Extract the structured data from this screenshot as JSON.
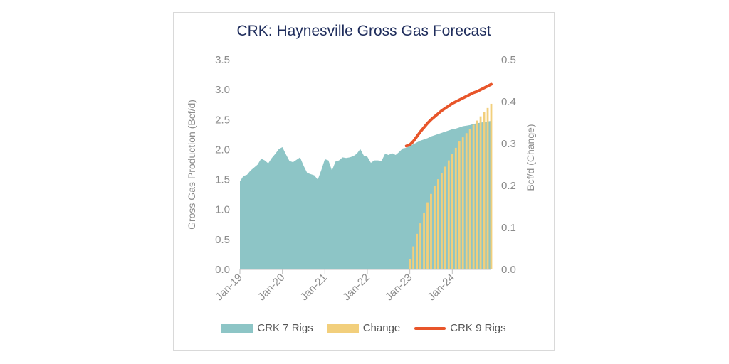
{
  "chart_data": {
    "type": "area",
    "title": "CRK: Haynesville Gross Gas Forecast",
    "ylabel": "Gross Gas Production (Bcf/d)",
    "y2label": "Bcf/d (Change)",
    "ylim": [
      0,
      3.5
    ],
    "y2lim": [
      0,
      0.5
    ],
    "yticks": [
      "0.0",
      "0.5",
      "1.0",
      "1.5",
      "2.0",
      "2.5",
      "3.0",
      "3.5"
    ],
    "y2ticks": [
      "0.0",
      "0.1",
      "0.2",
      "0.3",
      "0.4",
      "0.5"
    ],
    "xticks": [
      "Jan-19",
      "Jan-20",
      "Jan-21",
      "Jan-22",
      "Jan-23",
      "Jan-24"
    ],
    "x_start": "Jan-19",
    "legend_position": "bottom",
    "grid": false,
    "colors": {
      "area": "#8dc5c6",
      "bar": "#f2cf7c",
      "line": "#e8552a",
      "title": "#1f2d5c"
    },
    "series": [
      {
        "name": "CRK 7 Rigs",
        "type": "area",
        "axis": "left",
        "values": [
          1.47,
          1.56,
          1.58,
          1.65,
          1.7,
          1.75,
          1.85,
          1.82,
          1.77,
          1.86,
          1.93,
          2.01,
          2.04,
          1.92,
          1.81,
          1.79,
          1.83,
          1.87,
          1.73,
          1.61,
          1.59,
          1.57,
          1.5,
          1.66,
          1.84,
          1.82,
          1.65,
          1.8,
          1.82,
          1.87,
          1.86,
          1.87,
          1.89,
          1.93,
          2.01,
          1.9,
          1.88,
          1.78,
          1.82,
          1.82,
          1.81,
          1.93,
          1.91,
          1.94,
          1.91,
          1.96,
          2.02,
          2.03,
          2.06,
          2.09,
          2.12,
          2.15,
          2.17,
          2.19,
          2.22,
          2.24,
          2.26,
          2.28,
          2.3,
          2.32,
          2.34,
          2.35,
          2.37,
          2.39,
          2.4,
          2.41,
          2.43,
          2.44,
          2.45,
          2.46,
          2.47,
          2.48
        ]
      },
      {
        "name": "Change",
        "type": "bar",
        "axis": "right",
        "values": [
          0,
          0,
          0,
          0,
          0,
          0,
          0,
          0,
          0,
          0,
          0,
          0,
          0,
          0,
          0,
          0,
          0,
          0,
          0,
          0,
          0,
          0,
          0,
          0,
          0,
          0,
          0,
          0,
          0,
          0,
          0,
          0,
          0,
          0,
          0,
          0,
          0,
          0,
          0,
          0,
          0,
          0,
          0,
          0,
          0,
          0,
          0,
          0,
          0.025,
          0.055,
          0.085,
          0.11,
          0.135,
          0.16,
          0.18,
          0.2,
          0.215,
          0.23,
          0.245,
          0.26,
          0.275,
          0.29,
          0.305,
          0.315,
          0.325,
          0.335,
          0.345,
          0.355,
          0.365,
          0.375,
          0.385,
          0.395
        ]
      },
      {
        "name": "CRK 9 Rigs",
        "type": "line",
        "axis": "left",
        "values": [
          null,
          null,
          null,
          null,
          null,
          null,
          null,
          null,
          null,
          null,
          null,
          null,
          null,
          null,
          null,
          null,
          null,
          null,
          null,
          null,
          null,
          null,
          null,
          null,
          null,
          null,
          null,
          null,
          null,
          null,
          null,
          null,
          null,
          null,
          null,
          null,
          null,
          null,
          null,
          null,
          null,
          null,
          null,
          null,
          null,
          null,
          null,
          2.06,
          2.08,
          2.14,
          2.22,
          2.3,
          2.37,
          2.44,
          2.5,
          2.55,
          2.6,
          2.65,
          2.69,
          2.73,
          2.77,
          2.8,
          2.83,
          2.86,
          2.89,
          2.92,
          2.95,
          2.97,
          3.0,
          3.03,
          3.06,
          3.09
        ]
      }
    ]
  }
}
